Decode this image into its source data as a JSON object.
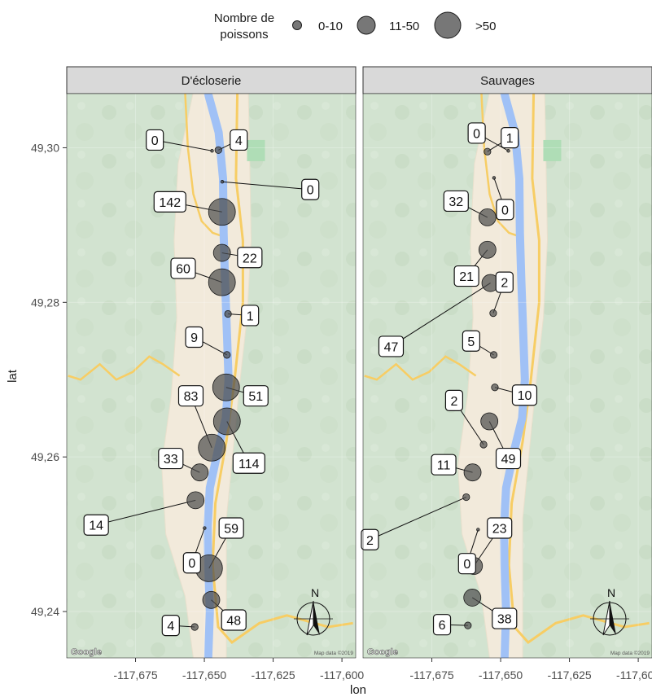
{
  "legend": {
    "title_line1": "Nombre de",
    "title_line2": "poissons",
    "items": [
      "0-10",
      "11-50",
      ">50"
    ]
  },
  "chart_data": {
    "type": "scatter",
    "xlabel": "lon",
    "ylabel": "lat",
    "xlim": [
      -117.7,
      -117.595
    ],
    "ylim": [
      49.234,
      49.307
    ],
    "x_ticks": [
      -117.675,
      -117.65,
      -117.625,
      -117.6
    ],
    "x_tick_labels": [
      "-117,675",
      "-117,650",
      "-117,625",
      "-117,600"
    ],
    "y_ticks": [
      49.24,
      49.26,
      49.28,
      49.3
    ],
    "y_tick_labels": [
      "49,24",
      "49,26",
      "49,28",
      "49,30"
    ],
    "size_classes": [
      {
        "label": "0-10",
        "range": [
          0,
          10
        ]
      },
      {
        "label": "11-50",
        "range": [
          11,
          50
        ]
      },
      {
        "label": ">50",
        "range": [
          51,
          null
        ]
      }
    ],
    "map_credits": [
      "Google",
      "Map data ©2019"
    ],
    "panels": [
      {
        "title": "D'écloserie",
        "points": [
          {
            "lon": -117.6472,
            "lat": 49.2996,
            "count": 0,
            "label": "0",
            "lx": -117.668,
            "ly": 49.301
          },
          {
            "lon": -117.6449,
            "lat": 49.2997,
            "count": 4,
            "label": "4",
            "lx": -117.6375,
            "ly": 49.301
          },
          {
            "lon": -117.6435,
            "lat": 49.2956,
            "count": 0,
            "label": "0",
            "lx": -117.6115,
            "ly": 49.2946
          },
          {
            "lon": -117.6436,
            "lat": 49.2917,
            "count": 142,
            "label": "142",
            "lx": -117.6625,
            "ly": 49.293
          },
          {
            "lon": -117.6436,
            "lat": 49.2864,
            "count": 22,
            "label": "22",
            "lx": -117.6335,
            "ly": 49.2858
          },
          {
            "lon": -117.6436,
            "lat": 49.2826,
            "count": 60,
            "label": "60",
            "lx": -117.6577,
            "ly": 49.2844
          },
          {
            "lon": -117.6414,
            "lat": 49.2785,
            "count": 1,
            "label": "1",
            "lx": -117.6334,
            "ly": 49.2783
          },
          {
            "lon": -117.6418,
            "lat": 49.2732,
            "count": 9,
            "label": "9",
            "lx": -117.6537,
            "ly": 49.2755
          },
          {
            "lon": -117.6421,
            "lat": 49.269,
            "count": 51,
            "label": "51",
            "lx": -117.6313,
            "ly": 49.2679
          },
          {
            "lon": -117.6418,
            "lat": 49.2646,
            "count": 114,
            "label": "114",
            "lx": -117.6338,
            "ly": 49.2592
          },
          {
            "lon": -117.6473,
            "lat": 49.2612,
            "count": 83,
            "label": "83",
            "lx": -117.6549,
            "ly": 49.2679
          },
          {
            "lon": -117.6517,
            "lat": 49.258,
            "count": 33,
            "label": "33",
            "lx": -117.6622,
            "ly": 49.2598
          },
          {
            "lon": -117.6532,
            "lat": 49.2544,
            "count": 14,
            "label": "14",
            "lx": -117.6893,
            "ly": 49.2512
          },
          {
            "lon": -117.6499,
            "lat": 49.2508,
            "count": 0,
            "label": "0",
            "lx": -117.6545,
            "ly": 49.2463
          },
          {
            "lon": -117.6483,
            "lat": 49.2456,
            "count": 59,
            "label": "59",
            "lx": -117.6402,
            "ly": 49.2508
          },
          {
            "lon": -117.6475,
            "lat": 49.2415,
            "count": 48,
            "label": "48",
            "lx": -117.6393,
            "ly": 49.2389
          },
          {
            "lon": -117.6535,
            "lat": 49.238,
            "count": 4,
            "label": "4",
            "lx": -117.6622,
            "ly": 49.2382
          }
        ]
      },
      {
        "title": "Sauvages",
        "points": [
          {
            "lon": -117.6472,
            "lat": 49.2996,
            "count": 0,
            "label": "0",
            "lx": -117.6587,
            "ly": 49.3019
          },
          {
            "lon": -117.6548,
            "lat": 49.2995,
            "count": 1,
            "label": "1",
            "lx": -117.6467,
            "ly": 49.3013
          },
          {
            "lon": -117.6524,
            "lat": 49.2961,
            "count": 0,
            "label": "0",
            "lx": -117.6484,
            "ly": 49.292
          },
          {
            "lon": -117.6548,
            "lat": 49.291,
            "count": 32,
            "label": "32",
            "lx": -117.6662,
            "ly": 49.2931
          },
          {
            "lon": -117.6548,
            "lat": 49.2868,
            "count": 21,
            "label": "21",
            "lx": -117.6624,
            "ly": 49.2834
          },
          {
            "lon": -117.6537,
            "lat": 49.2825,
            "count": 47,
            "label": "47",
            "lx": -117.6898,
            "ly": 49.2743
          },
          {
            "lon": -117.6527,
            "lat": 49.2786,
            "count": 2,
            "label": "2",
            "lx": -117.6486,
            "ly": 49.2826
          },
          {
            "lon": -117.6525,
            "lat": 49.2732,
            "count": 5,
            "label": "5",
            "lx": -117.6607,
            "ly": 49.275
          },
          {
            "lon": -117.6521,
            "lat": 49.269,
            "count": 10,
            "label": "10",
            "lx": -117.6413,
            "ly": 49.268
          },
          {
            "lon": -117.6541,
            "lat": 49.2646,
            "count": 49,
            "label": "49",
            "lx": -117.6472,
            "ly": 49.2598
          },
          {
            "lon": -117.6562,
            "lat": 49.2616,
            "count": 2,
            "label": "2",
            "lx": -117.6669,
            "ly": 49.2673
          },
          {
            "lon": -117.6602,
            "lat": 49.258,
            "count": 11,
            "label": "11",
            "lx": -117.6707,
            "ly": 49.259
          },
          {
            "lon": -117.6625,
            "lat": 49.2548,
            "count": 2,
            "label": "2",
            "lx": -117.6975,
            "ly": 49.2493
          },
          {
            "lon": -117.6582,
            "lat": 49.2506,
            "count": 0,
            "label": "0",
            "lx": -117.6622,
            "ly": 49.2462
          },
          {
            "lon": -117.6597,
            "lat": 49.2459,
            "count": 23,
            "label": "23",
            "lx": -117.6504,
            "ly": 49.2508
          },
          {
            "lon": -117.6603,
            "lat": 49.2418,
            "count": 38,
            "label": "38",
            "lx": -117.6486,
            "ly": 49.2391
          },
          {
            "lon": -117.6619,
            "lat": 49.2382,
            "count": 6,
            "label": "6",
            "lx": -117.6713,
            "ly": 49.2383
          }
        ]
      }
    ]
  }
}
